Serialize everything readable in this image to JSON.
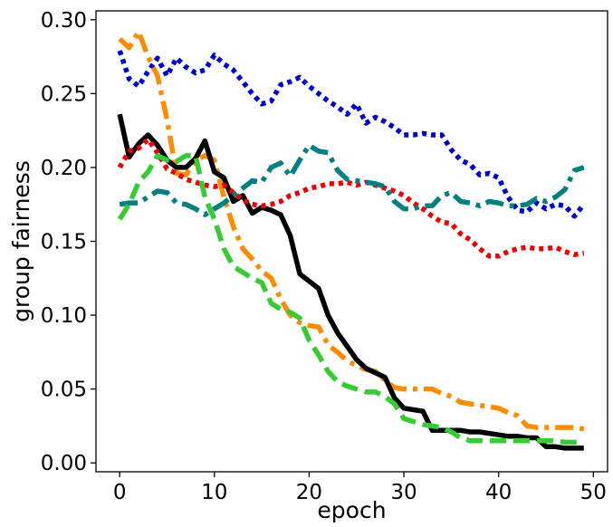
{
  "chart_data": {
    "type": "line",
    "xlabel": "epoch",
    "ylabel": "group fairness",
    "xlim": [
      -2.5,
      51.5
    ],
    "ylim": [
      -0.006,
      0.306
    ],
    "xticks": [
      0,
      10,
      20,
      30,
      40,
      50
    ],
    "xtick_labels": [
      "0",
      "10",
      "20",
      "30",
      "40",
      "50"
    ],
    "yticks": [
      0.0,
      0.05,
      0.1,
      0.15,
      0.2,
      0.25,
      0.3
    ],
    "ytick_labels": [
      "0.00",
      "0.05",
      "0.10",
      "0.15",
      "0.20",
      "0.25",
      "0.30"
    ],
    "grid": false,
    "series": [
      {
        "color": "#0000cc",
        "style": "dotted",
        "x": [
          0,
          1,
          2,
          3,
          4,
          5,
          6,
          7,
          8,
          9,
          10,
          11,
          12,
          13,
          14,
          15,
          16,
          17,
          18,
          19,
          20,
          21,
          22,
          23,
          24,
          25,
          26,
          27,
          28,
          29,
          30,
          31,
          32,
          33,
          34,
          35,
          36,
          37,
          38,
          39,
          40,
          41,
          42,
          43,
          44,
          45,
          46,
          47,
          48,
          49
        ],
        "values": [
          0.279,
          0.26,
          0.255,
          0.265,
          0.274,
          0.262,
          0.274,
          0.268,
          0.264,
          0.266,
          0.276,
          0.27,
          0.266,
          0.258,
          0.25,
          0.243,
          0.245,
          0.256,
          0.258,
          0.261,
          0.255,
          0.25,
          0.245,
          0.241,
          0.236,
          0.243,
          0.23,
          0.234,
          0.231,
          0.227,
          0.222,
          0.222,
          0.223,
          0.222,
          0.222,
          0.212,
          0.205,
          0.202,
          0.195,
          0.196,
          0.193,
          0.18,
          0.171,
          0.17,
          0.176,
          0.172,
          0.175,
          0.174,
          0.167,
          0.175
        ]
      },
      {
        "color": "#ff8c00",
        "style": "dashdot",
        "x": [
          0,
          1,
          2,
          3,
          4,
          5,
          6,
          7,
          8,
          9,
          10,
          11,
          12,
          13,
          14,
          15,
          16,
          17,
          18,
          19,
          20,
          21,
          22,
          23,
          24,
          25,
          26,
          27,
          28,
          29,
          30,
          31,
          32,
          33,
          34,
          35,
          36,
          37,
          38,
          39,
          40,
          41,
          42,
          43,
          44,
          45,
          46,
          47,
          48,
          49
        ],
        "values": [
          0.287,
          0.281,
          0.292,
          0.275,
          0.262,
          0.232,
          0.196,
          0.195,
          0.205,
          0.208,
          0.205,
          0.18,
          0.16,
          0.145,
          0.138,
          0.13,
          0.125,
          0.111,
          0.1,
          0.095,
          0.093,
          0.092,
          0.08,
          0.075,
          0.069,
          0.066,
          0.063,
          0.062,
          0.056,
          0.051,
          0.05,
          0.05,
          0.05,
          0.05,
          0.047,
          0.045,
          0.041,
          0.04,
          0.039,
          0.038,
          0.037,
          0.034,
          0.032,
          0.025,
          0.024,
          0.024,
          0.024,
          0.024,
          0.024,
          0.023
        ]
      },
      {
        "color": "#000000",
        "style": "solid",
        "x": [
          0,
          1,
          2,
          3,
          4,
          5,
          6,
          7,
          8,
          9,
          10,
          11,
          12,
          13,
          14,
          15,
          16,
          17,
          18,
          19,
          20,
          21,
          22,
          23,
          24,
          25,
          26,
          27,
          28,
          29,
          30,
          31,
          32,
          33,
          34,
          35,
          36,
          37,
          38,
          39,
          40,
          41,
          42,
          43,
          44,
          45,
          46,
          47,
          48,
          49
        ],
        "values": [
          0.236,
          0.207,
          0.216,
          0.222,
          0.215,
          0.205,
          0.2,
          0.2,
          0.206,
          0.218,
          0.197,
          0.193,
          0.177,
          0.181,
          0.169,
          0.173,
          0.171,
          0.168,
          0.154,
          0.128,
          0.123,
          0.118,
          0.1,
          0.088,
          0.079,
          0.07,
          0.064,
          0.061,
          0.058,
          0.044,
          0.037,
          0.036,
          0.035,
          0.022,
          0.022,
          0.022,
          0.022,
          0.021,
          0.021,
          0.02,
          0.019,
          0.018,
          0.018,
          0.017,
          0.017,
          0.011,
          0.011,
          0.01,
          0.01,
          0.01
        ]
      },
      {
        "color": "#ee0000",
        "style": "dotted",
        "x": [
          0,
          1,
          2,
          3,
          4,
          5,
          6,
          7,
          8,
          9,
          10,
          11,
          12,
          13,
          14,
          15,
          16,
          17,
          18,
          19,
          20,
          21,
          22,
          23,
          24,
          25,
          26,
          27,
          28,
          29,
          30,
          31,
          32,
          33,
          34,
          35,
          36,
          37,
          38,
          39,
          40,
          41,
          42,
          43,
          44,
          45,
          46,
          47,
          48,
          49
        ],
        "values": [
          0.2,
          0.211,
          0.213,
          0.219,
          0.21,
          0.199,
          0.196,
          0.192,
          0.19,
          0.188,
          0.187,
          0.188,
          0.183,
          0.178,
          0.175,
          0.174,
          0.175,
          0.177,
          0.181,
          0.183,
          0.186,
          0.187,
          0.189,
          0.189,
          0.19,
          0.188,
          0.19,
          0.188,
          0.186,
          0.184,
          0.181,
          0.176,
          0.172,
          0.167,
          0.163,
          0.162,
          0.155,
          0.151,
          0.145,
          0.14,
          0.14,
          0.143,
          0.145,
          0.146,
          0.145,
          0.145,
          0.146,
          0.143,
          0.141,
          0.142
        ]
      },
      {
        "color": "#008080",
        "style": "dashdot",
        "x": [
          0,
          1,
          2,
          3,
          4,
          5,
          6,
          7,
          8,
          9,
          10,
          11,
          12,
          13,
          14,
          15,
          16,
          17,
          18,
          19,
          20,
          21,
          22,
          23,
          24,
          25,
          26,
          27,
          28,
          29,
          30,
          31,
          32,
          33,
          34,
          35,
          36,
          37,
          38,
          39,
          40,
          41,
          42,
          43,
          44,
          45,
          46,
          47,
          48,
          49
        ],
        "values": [
          0.175,
          0.176,
          0.176,
          0.18,
          0.184,
          0.183,
          0.176,
          0.175,
          0.172,
          0.168,
          0.172,
          0.176,
          0.181,
          0.186,
          0.191,
          0.19,
          0.2,
          0.203,
          0.194,
          0.205,
          0.215,
          0.211,
          0.21,
          0.198,
          0.192,
          0.191,
          0.19,
          0.189,
          0.187,
          0.177,
          0.172,
          0.172,
          0.174,
          0.174,
          0.181,
          0.183,
          0.177,
          0.176,
          0.174,
          0.177,
          0.176,
          0.174,
          0.174,
          0.175,
          0.179,
          0.177,
          0.18,
          0.185,
          0.198,
          0.2
        ]
      },
      {
        "color": "#33cc33",
        "style": "dashed",
        "x": [
          0,
          1,
          2,
          3,
          4,
          5,
          6,
          7,
          8,
          9,
          10,
          11,
          12,
          13,
          14,
          15,
          16,
          17,
          18,
          19,
          20,
          21,
          22,
          23,
          24,
          25,
          26,
          27,
          28,
          29,
          30,
          31,
          32,
          33,
          34,
          35,
          36,
          37,
          38,
          39,
          40,
          41,
          42,
          43,
          44,
          45,
          46,
          47,
          48,
          49
        ],
        "values": [
          0.165,
          0.175,
          0.19,
          0.197,
          0.208,
          0.205,
          0.204,
          0.208,
          0.208,
          0.18,
          0.165,
          0.145,
          0.133,
          0.129,
          0.125,
          0.122,
          0.108,
          0.104,
          0.102,
          0.098,
          0.083,
          0.073,
          0.062,
          0.055,
          0.052,
          0.05,
          0.048,
          0.048,
          0.045,
          0.04,
          0.03,
          0.028,
          0.026,
          0.025,
          0.024,
          0.021,
          0.017,
          0.015,
          0.015,
          0.015,
          0.015,
          0.015,
          0.015,
          0.015,
          0.015,
          0.015,
          0.015,
          0.014,
          0.014,
          0.014
        ]
      }
    ]
  }
}
